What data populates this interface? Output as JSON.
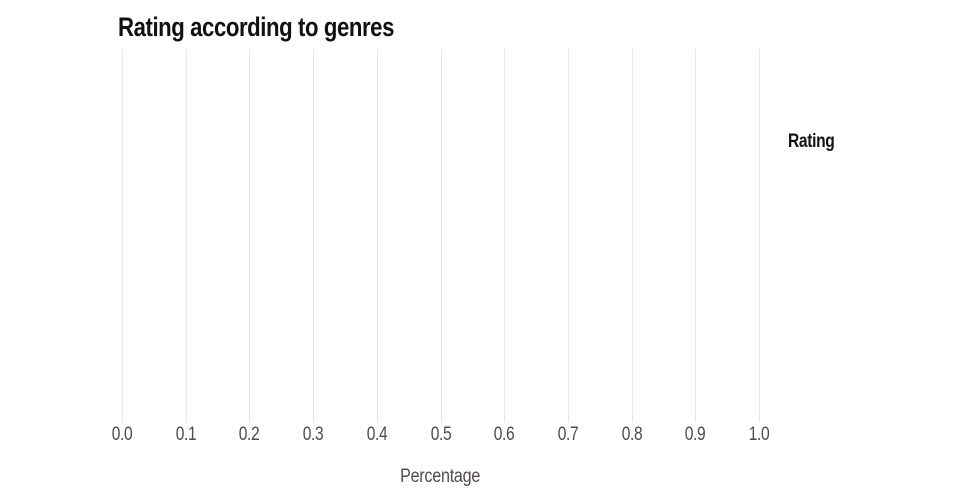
{
  "title": "Rating according to genres",
  "x_axis": {
    "label": "Percentage",
    "tick_labels": [
      "0.0",
      "0.1",
      "0.2",
      "0.3",
      "0.4",
      "0.5",
      "0.6",
      "0.7",
      "0.8",
      "0.9",
      "1.0"
    ]
  },
  "y_axis": {
    "label": ""
  },
  "legend": {
    "title": "Rating",
    "items": []
  },
  "colors": {
    "background": "#ffffff",
    "gridline": "#f2e1e3",
    "tick_text": "#514c4a",
    "axis_label_text": "#514c4a",
    "title_text": "#111111",
    "legend_title_text": "#111111"
  },
  "chart_data": {
    "type": "bar",
    "orientation": "horizontal",
    "title": "Rating according to genres",
    "xlabel": "Percentage",
    "ylabel": "",
    "legend_title": "Rating",
    "xlim": [
      0.0,
      1.0
    ],
    "xticks": [
      0.0,
      0.1,
      0.2,
      0.3,
      0.4,
      0.5,
      0.6,
      0.7,
      0.8,
      0.9,
      1.0
    ],
    "categories": [],
    "series": [],
    "grid": "vertical-only",
    "legend_position": "right"
  }
}
